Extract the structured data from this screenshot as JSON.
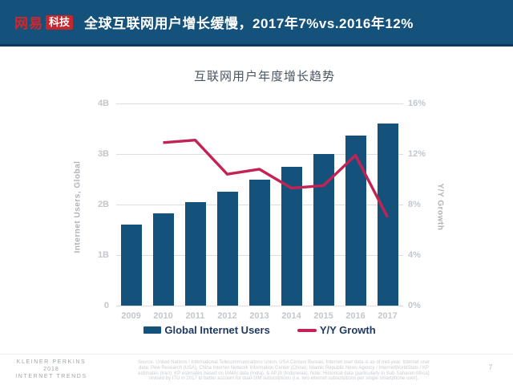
{
  "header": {
    "logo_text": "网易",
    "logo_badge": "科技",
    "title": "全球互联网用户增长缓慢，2017年7%vs.2016年12%",
    "bg_color": "#15527B",
    "logo_red": "#D5252C"
  },
  "chart_data": {
    "type": "bar",
    "title": "互联网用户年度增长趋势",
    "categories": [
      "2009",
      "2010",
      "2011",
      "2012",
      "2013",
      "2014",
      "2015",
      "2016",
      "2017"
    ],
    "series": [
      {
        "name": "Global Internet Users",
        "type": "bar",
        "axis": "left",
        "unit": "billions",
        "color": "#15527B",
        "values": [
          1.6,
          1.83,
          2.05,
          2.26,
          2.5,
          2.74,
          3.0,
          3.36,
          3.6
        ]
      },
      {
        "name": "Y/Y Growth",
        "type": "line",
        "axis": "right",
        "unit": "percent",
        "color": "#C22355",
        "values": [
          null,
          12.9,
          13.1,
          10.4,
          10.8,
          9.3,
          9.5,
          11.9,
          7.0
        ]
      }
    ],
    "left_axis": {
      "label": "Internet Users, Global",
      "min": 0,
      "max": 4,
      "ticks": [
        "4B",
        "3B",
        "2B",
        "1B",
        "0"
      ]
    },
    "right_axis": {
      "label": "Y/Y Growth",
      "min": 0,
      "max": 16,
      "ticks": [
        "16%",
        "12%",
        "8%",
        "4%",
        "0%"
      ]
    },
    "grid": true,
    "legend_position": "bottom",
    "legend": [
      {
        "label": "Global Internet Users",
        "color": "#15527B",
        "shape": "bar"
      },
      {
        "label": "Y/Y Growth",
        "color": "#C22355",
        "shape": "line"
      }
    ]
  },
  "footer": {
    "brand_line1": "KLEINER PERKINS",
    "brand_line2": "2018",
    "brand_line3": "INTERNET TRENDS",
    "source_lines": [
      "Source: United Nations / International Telecommunications Union, USA Census Bureau. Internet user data is as of mid-year. Internet user",
      "data: Pew Research (USA), China Internet Network Information Center (China), Islamic Republic News Agency / InternetWorldStats / KP",
      "estimates (Iran), KP estimates based on IAMAI data (India), & APJII (Indonesia).  Note: Historical data (particularly in Sub-Saharan Africa)",
      "revised by ITU in 2017 to better account for dual-SIM subscriptions (i.e. two internet subscriptions per single smartphone user)."
    ],
    "page_number": "7"
  }
}
